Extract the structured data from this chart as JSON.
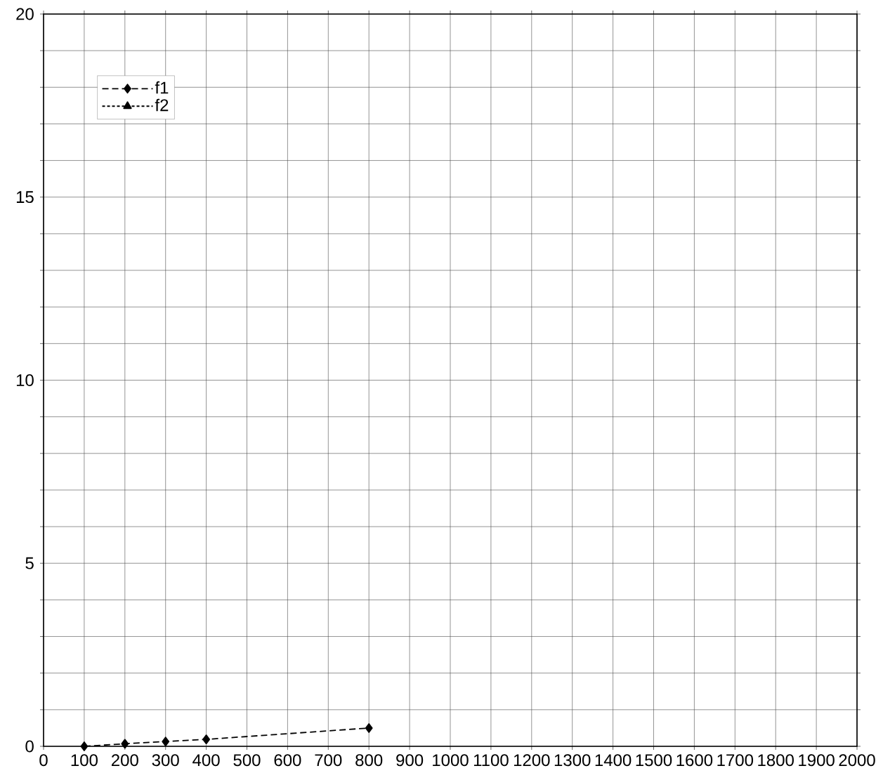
{
  "chart_data": {
    "type": "line",
    "x": [
      100,
      200,
      300,
      400,
      800
    ],
    "series": [
      {
        "name": "f1",
        "color": "#000000",
        "values": [
          0,
          0.07,
          0.13,
          0.19,
          0.5
        ],
        "marker": "diamond",
        "line_style": "dashed"
      },
      {
        "name": "f2",
        "color": "#000000",
        "values": [
          null,
          null,
          null,
          null,
          null
        ],
        "marker": "triangle",
        "line_style": "dotted"
      }
    ],
    "xlim": [
      0,
      2000
    ],
    "xticks": [
      0,
      100,
      200,
      300,
      400,
      500,
      600,
      700,
      800,
      900,
      1000,
      1100,
      1200,
      1300,
      1400,
      1500,
      1600,
      1700,
      1800,
      1900,
      2000
    ],
    "ylim": [
      0,
      20
    ],
    "yticks": [
      0,
      {
        "value": 1,
        "label": null
      },
      {
        "value": 2,
        "label": null
      },
      {
        "value": 3,
        "label": null
      },
      {
        "value": 4,
        "label": null
      },
      5,
      {
        "value": 6,
        "label": null
      },
      {
        "value": 7,
        "label": null
      },
      {
        "value": 8,
        "label": null
      },
      {
        "value": 9,
        "label": null
      },
      10,
      {
        "value": 11,
        "label": null
      },
      {
        "value": 12,
        "label": null
      },
      {
        "value": 13,
        "label": null
      },
      {
        "value": 14,
        "label": null
      },
      15,
      {
        "value": 16,
        "label": null
      },
      {
        "value": 17,
        "label": null
      },
      {
        "value": 18,
        "label": null
      },
      {
        "value": 19,
        "label": null
      },
      20
    ],
    "grid": true,
    "legend": "top left"
  }
}
